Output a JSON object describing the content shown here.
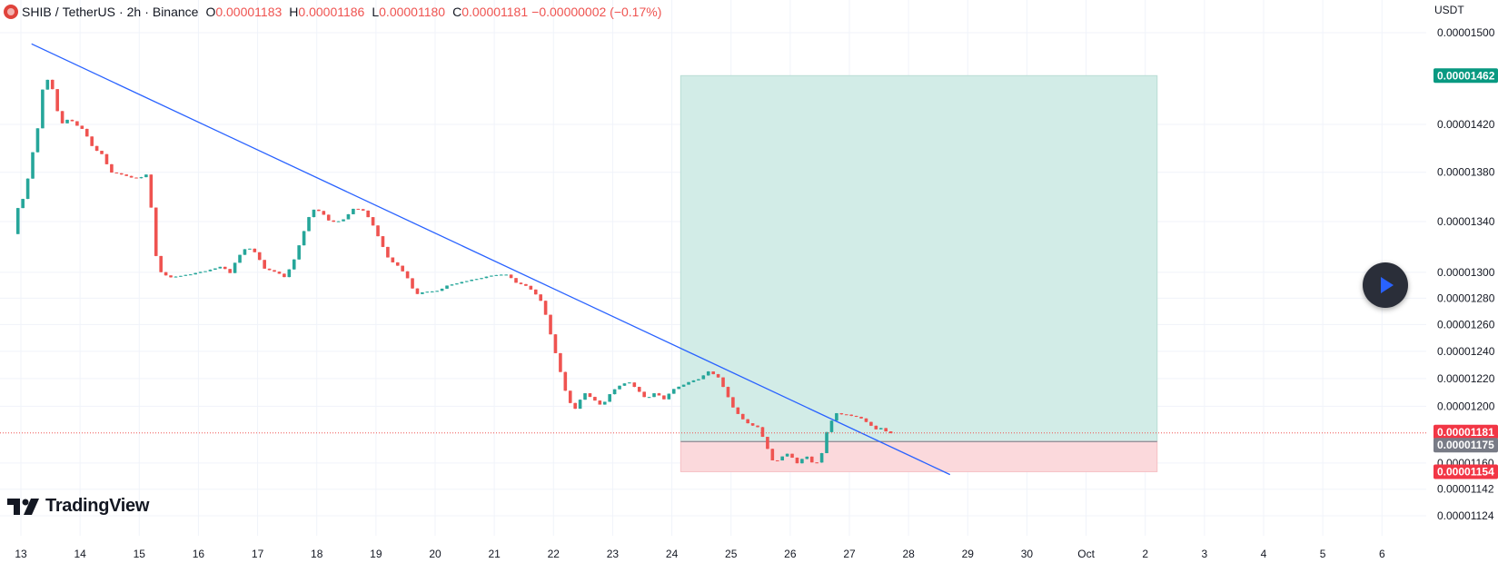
{
  "legend": {
    "symbol": "SHIB",
    "pair": "TetherUS",
    "interval": "2h",
    "exchange": "Binance",
    "open_label": "O",
    "open": "0.00001183",
    "high_label": "H",
    "high": "0.00001186",
    "low_label": "L",
    "low": "0.00001180",
    "close_label": "C",
    "close": "0.00001181",
    "change": "−0.00000002 (−0.17%)"
  },
  "currency": "USDT",
  "watermark": "TradingView",
  "colors": {
    "up": "#26a69a",
    "down": "#ef5350",
    "trend": "#2962ff",
    "target_zone": "#d2ece7",
    "stop_zone": "#fbd9dc",
    "entry": "#787b86",
    "grid": "#f0f3fa"
  },
  "chart_data": {
    "type": "candlestick",
    "x_ticks": [
      "13",
      "14",
      "15",
      "16",
      "17",
      "18",
      "19",
      "20",
      "21",
      "22",
      "23",
      "24",
      "25",
      "26",
      "27",
      "28",
      "29",
      "30",
      "Oct",
      "2",
      "3",
      "4",
      "5",
      "6"
    ],
    "y_ticks": [
      "0.00001500",
      "0.00001420",
      "0.00001380",
      "0.00001340",
      "0.00001300",
      "0.00001280",
      "0.00001260",
      "0.00001240",
      "0.00001220",
      "0.00001200",
      "0.00001160",
      "0.00001142",
      "0.00001124"
    ],
    "price_labels": [
      {
        "value": "0.00001462",
        "kind": "target"
      },
      {
        "value": "0.00001181",
        "kind": "last"
      },
      {
        "value": "0.00001175",
        "kind": "entry"
      },
      {
        "value": "0.00001154",
        "kind": "stop"
      }
    ],
    "position": {
      "entry": 1.175e-05,
      "target": 1.462e-05,
      "stop": 1.154e-05,
      "start_day": 24.15,
      "end_day": 32.2
    },
    "trendline": [
      {
        "day": 13.18,
        "price": 1.49e-05
      },
      {
        "day": 28.7,
        "price": 1.152e-05
      }
    ],
    "price_axis": "log",
    "path_points": [
      [
        12.95,
        1.33e-05
      ],
      [
        13.05,
        1.355e-05
      ],
      [
        13.15,
        1.36e-05
      ],
      [
        13.25,
        1.39e-05
      ],
      [
        13.35,
        1.41e-05
      ],
      [
        13.45,
        1.45e-05
      ],
      [
        13.55,
        1.46e-05
      ],
      [
        13.62,
        1.45e-05
      ],
      [
        13.75,
        1.42e-05
      ],
      [
        13.9,
        1.425e-05
      ],
      [
        14.0,
        1.42e-05
      ],
      [
        14.15,
        1.415e-05
      ],
      [
        14.3,
        1.4e-05
      ],
      [
        14.45,
        1.395e-05
      ],
      [
        14.6,
        1.38e-05
      ],
      [
        14.8,
        1.378e-05
      ],
      [
        15.0,
        1.375e-05
      ],
      [
        15.15,
        1.376e-05
      ],
      [
        15.25,
        1.38e-05
      ],
      [
        15.32,
        1.32e-05
      ],
      [
        15.45,
        1.3e-05
      ],
      [
        15.6,
        1.296e-05
      ],
      [
        15.75,
        1.297e-05
      ],
      [
        15.9,
        1.298e-05
      ],
      [
        16.1,
        1.3e-05
      ],
      [
        16.3,
        1.302e-05
      ],
      [
        16.5,
        1.305e-05
      ],
      [
        16.6,
        1.298e-05
      ],
      [
        16.75,
        1.312e-05
      ],
      [
        16.9,
        1.32e-05
      ],
      [
        17.05,
        1.315e-05
      ],
      [
        17.2,
        1.303e-05
      ],
      [
        17.4,
        1.3e-05
      ],
      [
        17.55,
        1.296e-05
      ],
      [
        17.7,
        1.31e-05
      ],
      [
        17.85,
        1.33e-05
      ],
      [
        18.0,
        1.35e-05
      ],
      [
        18.15,
        1.348e-05
      ],
      [
        18.3,
        1.34e-05
      ],
      [
        18.5,
        1.34e-05
      ],
      [
        18.7,
        1.35e-05
      ],
      [
        18.85,
        1.35e-05
      ],
      [
        19.0,
        1.34e-05
      ],
      [
        19.15,
        1.325e-05
      ],
      [
        19.3,
        1.31e-05
      ],
      [
        19.45,
        1.305e-05
      ],
      [
        19.6,
        1.297e-05
      ],
      [
        19.75,
        1.283e-05
      ],
      [
        19.9,
        1.285e-05
      ],
      [
        20.1,
        1.285e-05
      ],
      [
        20.3,
        1.29e-05
      ],
      [
        20.5,
        1.292e-05
      ],
      [
        20.7,
        1.294e-05
      ],
      [
        20.9,
        1.296e-05
      ],
      [
        21.1,
        1.298e-05
      ],
      [
        21.3,
        1.298e-05
      ],
      [
        21.45,
        1.292e-05
      ],
      [
        21.6,
        1.29e-05
      ],
      [
        21.75,
        1.285e-05
      ],
      [
        21.9,
        1.276e-05
      ],
      [
        22.05,
        1.25e-05
      ],
      [
        22.2,
        1.225e-05
      ],
      [
        22.32,
        1.205e-05
      ],
      [
        22.45,
        1.198e-05
      ],
      [
        22.6,
        1.21e-05
      ],
      [
        22.75,
        1.205e-05
      ],
      [
        22.9,
        1.2e-05
      ],
      [
        23.05,
        1.21e-05
      ],
      [
        23.2,
        1.215e-05
      ],
      [
        23.35,
        1.218e-05
      ],
      [
        23.5,
        1.212e-05
      ],
      [
        23.65,
        1.205e-05
      ],
      [
        23.8,
        1.21e-05
      ],
      [
        23.95,
        1.205e-05
      ],
      [
        24.1,
        1.212e-05
      ],
      [
        24.25,
        1.215e-05
      ],
      [
        24.4,
        1.218e-05
      ],
      [
        24.55,
        1.22e-05
      ],
      [
        24.7,
        1.225e-05
      ],
      [
        24.85,
        1.222e-05
      ],
      [
        25.0,
        1.21e-05
      ],
      [
        25.1,
        1.2e-05
      ],
      [
        25.25,
        1.192e-05
      ],
      [
        25.4,
        1.187e-05
      ],
      [
        25.55,
        1.185e-05
      ],
      [
        25.7,
        1.17e-05
      ],
      [
        25.8,
        1.16e-05
      ],
      [
        25.9,
        1.163e-05
      ],
      [
        26.05,
        1.167e-05
      ],
      [
        26.2,
        1.16e-05
      ],
      [
        26.35,
        1.165e-05
      ],
      [
        26.5,
        1.158e-05
      ],
      [
        26.62,
        1.167e-05
      ],
      [
        26.72,
        1.185e-05
      ],
      [
        26.85,
        1.195e-05
      ],
      [
        27.0,
        1.194e-05
      ],
      [
        27.15,
        1.193e-05
      ],
      [
        27.3,
        1.191e-05
      ],
      [
        27.45,
        1.186e-05
      ],
      [
        27.55,
        1.183e-05
      ],
      [
        27.65,
        1.185e-05
      ],
      [
        27.72,
        1.181e-05
      ]
    ]
  }
}
